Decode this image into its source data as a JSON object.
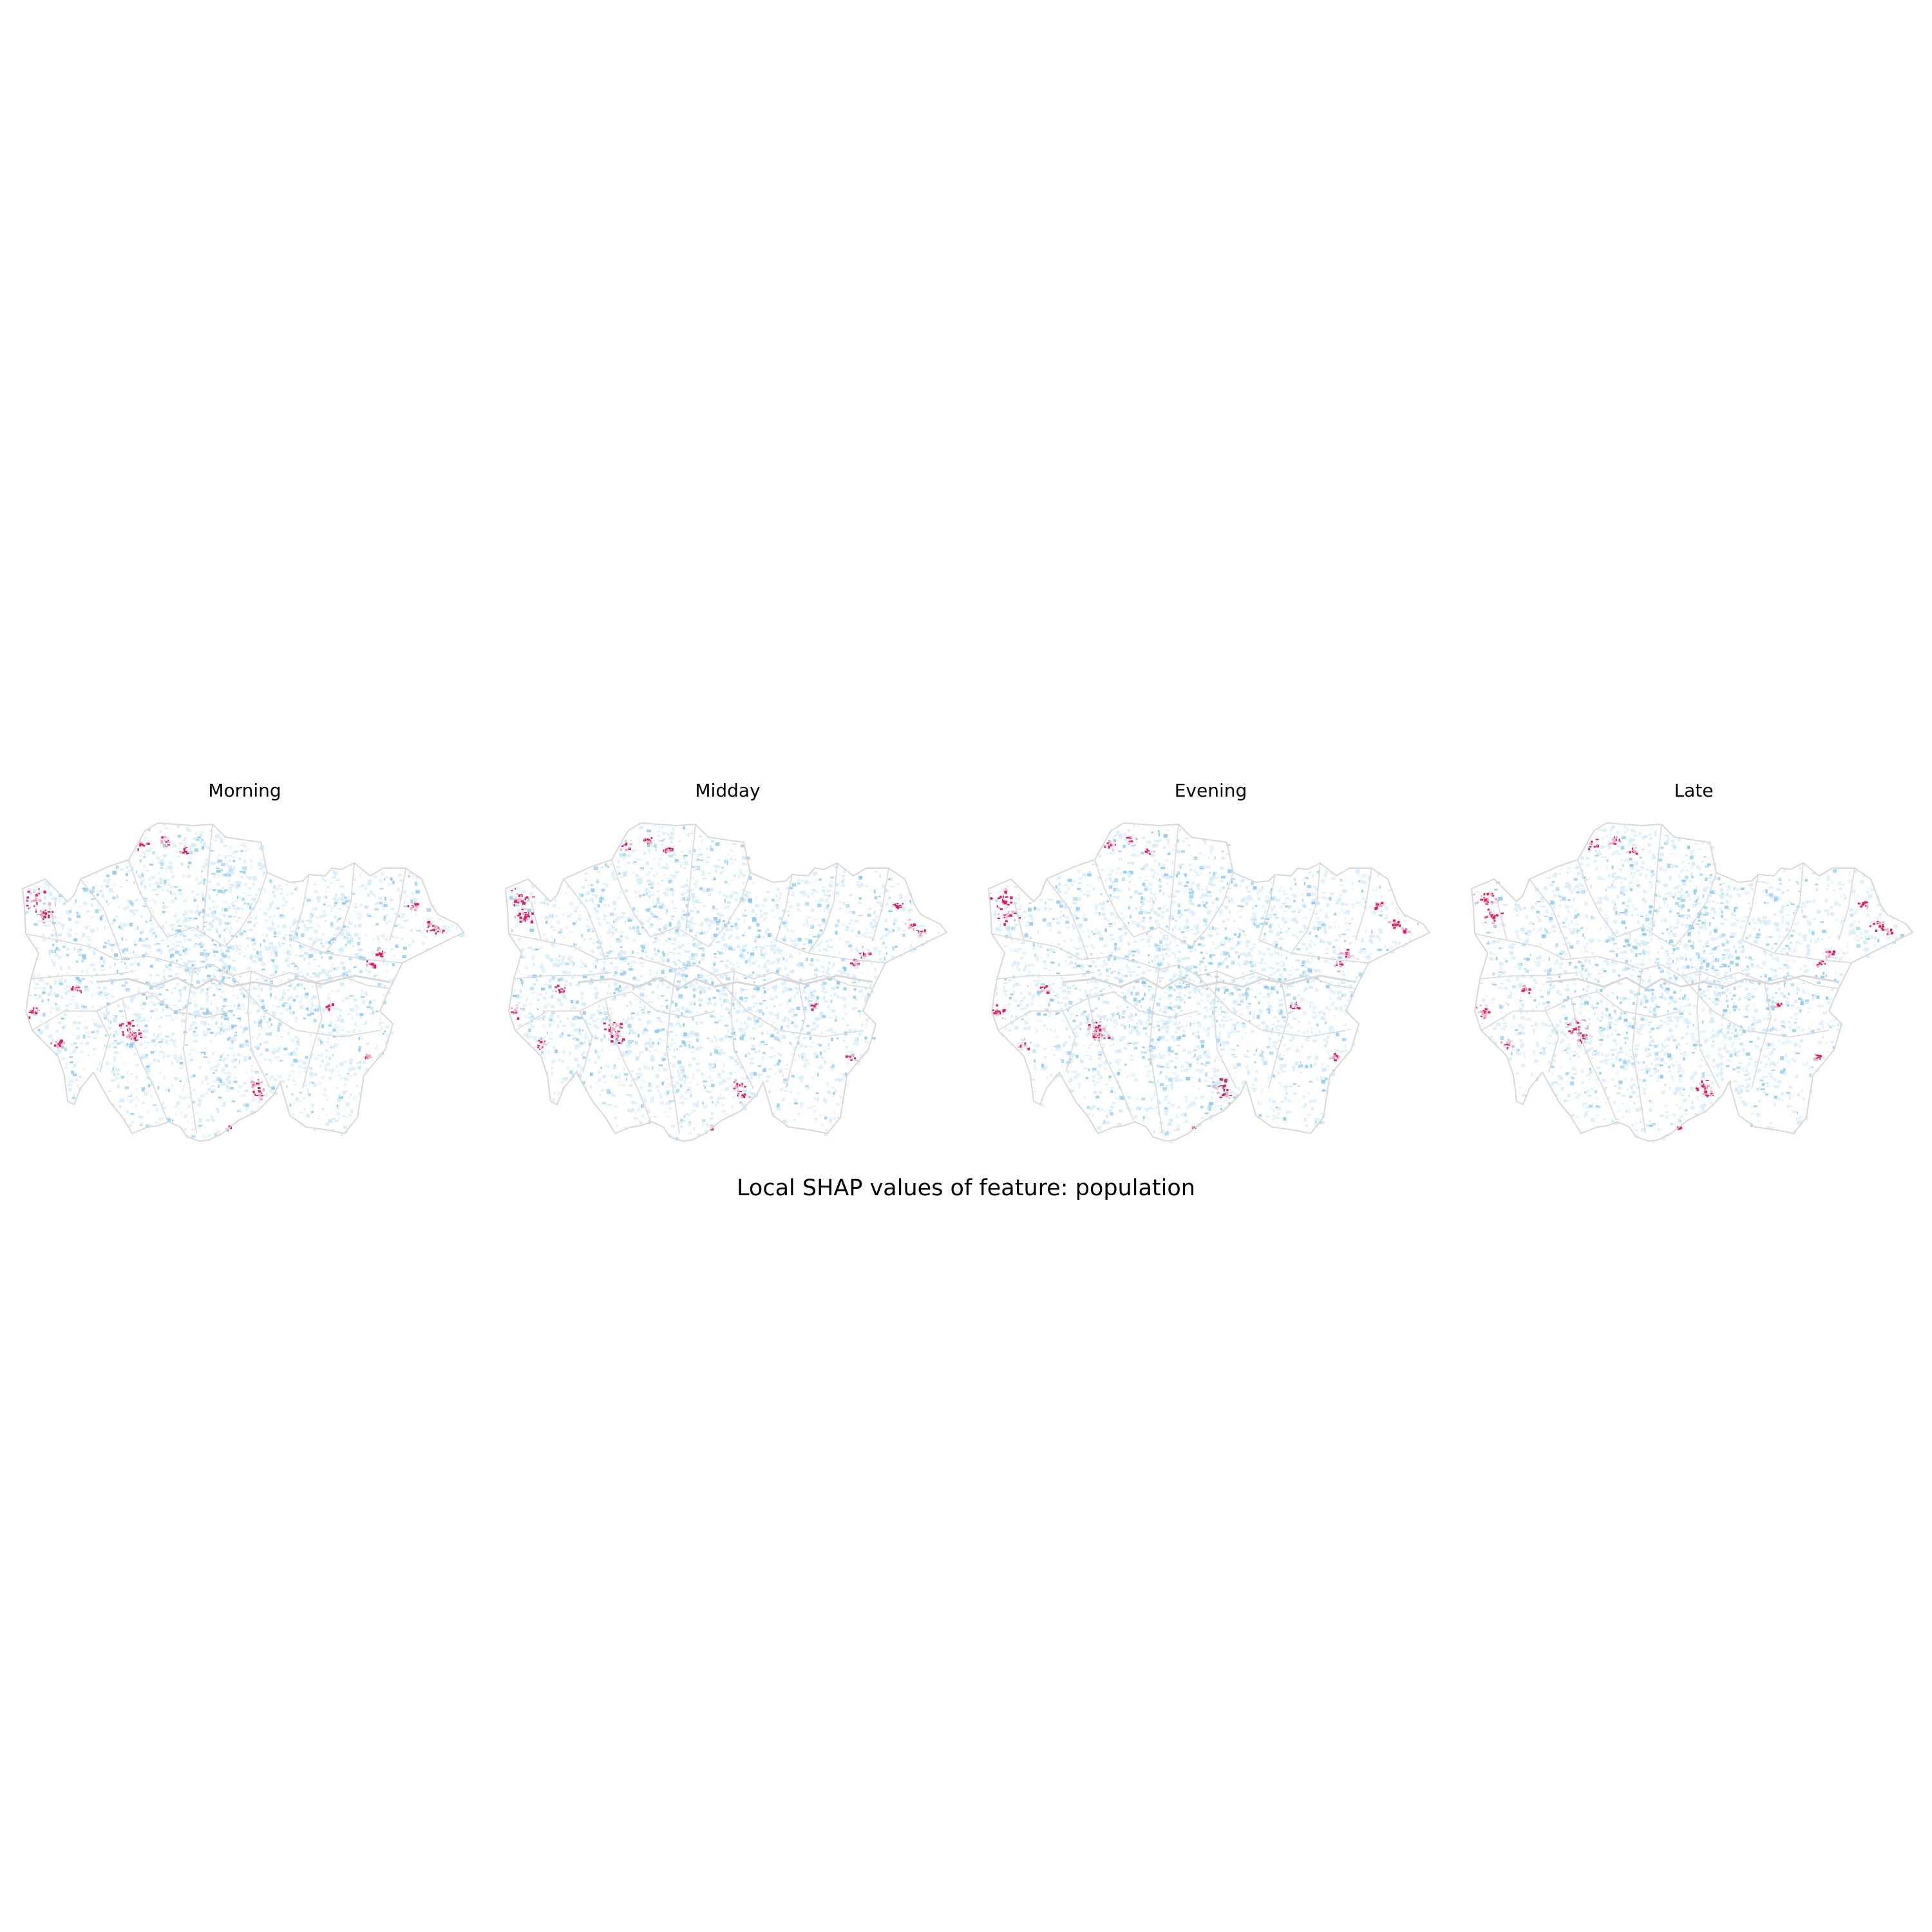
{
  "figure": {
    "suptitle": "Local SHAP values of feature: population"
  },
  "panels": [
    {
      "title": "Morning"
    },
    {
      "title": "Midday"
    },
    {
      "title": "Evening"
    },
    {
      "title": "Late"
    }
  ],
  "colors": {
    "negative": "#8fcbef",
    "negative_light": "#d6ecfa",
    "positive": "#e8185a",
    "positive_light": "#f6a7c2",
    "boundary": "#d8d8d8"
  }
}
